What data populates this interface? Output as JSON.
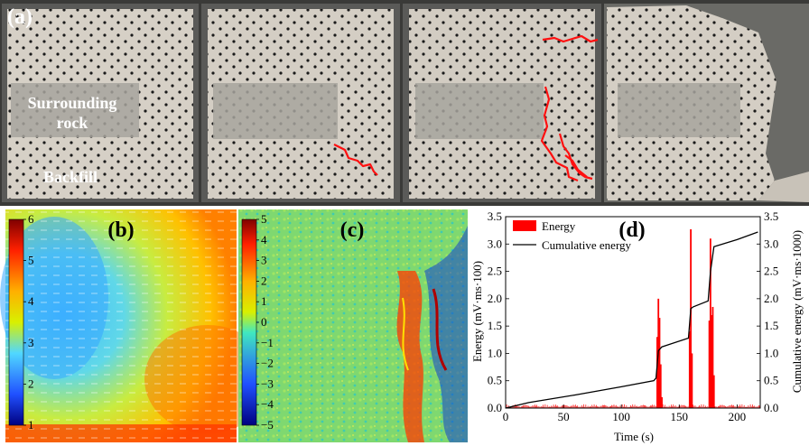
{
  "panels": {
    "a": {
      "label": "(a)",
      "surrounding_rock_label": [
        "Surrounding",
        "rock"
      ],
      "backfill_label": "Backfill"
    },
    "b": {
      "label": "(b)",
      "colorbar_ticks": [
        "6",
        "5",
        "4",
        "3",
        "2",
        "1"
      ],
      "colors": [
        "#7f0000",
        "#ff2000",
        "#ffb000",
        "#d8f000",
        "#50d8ff",
        "#2050ff",
        "#000080"
      ]
    },
    "c": {
      "label": "(c)",
      "colorbar_ticks": [
        "5",
        "4",
        "3",
        "2",
        "1",
        "0",
        "−1",
        "−2",
        "−3",
        "−4",
        "−5"
      ],
      "colors": [
        "#7f0000",
        "#ff2000",
        "#ffb000",
        "#d8f000",
        "#40e8c0",
        "#2050ff",
        "#000080"
      ]
    },
    "d": {
      "label": "(d)"
    }
  },
  "crack_color": "#ff1010",
  "chart_data": {
    "type": "bar",
    "title": "",
    "xlabel": "Time (s)",
    "ylabel": "Energy (mV·ms·100)",
    "ylabel_right": "Cumulative energy (mV·ms·1000)",
    "xlim": [
      0,
      220
    ],
    "ylim": [
      0,
      3.5
    ],
    "ylim_right": [
      0,
      3.5
    ],
    "xticks": [
      0,
      50,
      100,
      150,
      200
    ],
    "yticks": [
      0.0,
      0.5,
      1.0,
      1.5,
      2.0,
      2.5,
      3.0,
      3.5
    ],
    "yticks_right": [
      0.0,
      0.5,
      1.0,
      1.5,
      2.0,
      2.5,
      3.0,
      3.5
    ],
    "legend": [
      "Energy",
      "Cumulative energy"
    ],
    "legend_position": "top-left",
    "energy_color": "#ff0000",
    "cumulative_color": "#000000",
    "series": [
      {
        "name": "Energy",
        "x": [
          131,
          132,
          133,
          134,
          135,
          159,
          160,
          161,
          176,
          177,
          178,
          179,
          180
        ],
        "values": [
          1.3,
          2.0,
          1.65,
          0.8,
          0.2,
          1.4,
          3.27,
          1.0,
          1.6,
          3.1,
          1.7,
          1.85,
          0.6
        ]
      },
      {
        "name": "Cumulative energy",
        "x": [
          0,
          20,
          60,
          100,
          128,
          130,
          132,
          135,
          158,
          160,
          162,
          175,
          177,
          180,
          200,
          218
        ],
        "values": [
          0.0,
          0.1,
          0.24,
          0.39,
          0.5,
          0.55,
          1.05,
          1.12,
          1.28,
          1.82,
          1.85,
          1.96,
          2.5,
          2.95,
          3.08,
          3.22
        ]
      }
    ]
  }
}
